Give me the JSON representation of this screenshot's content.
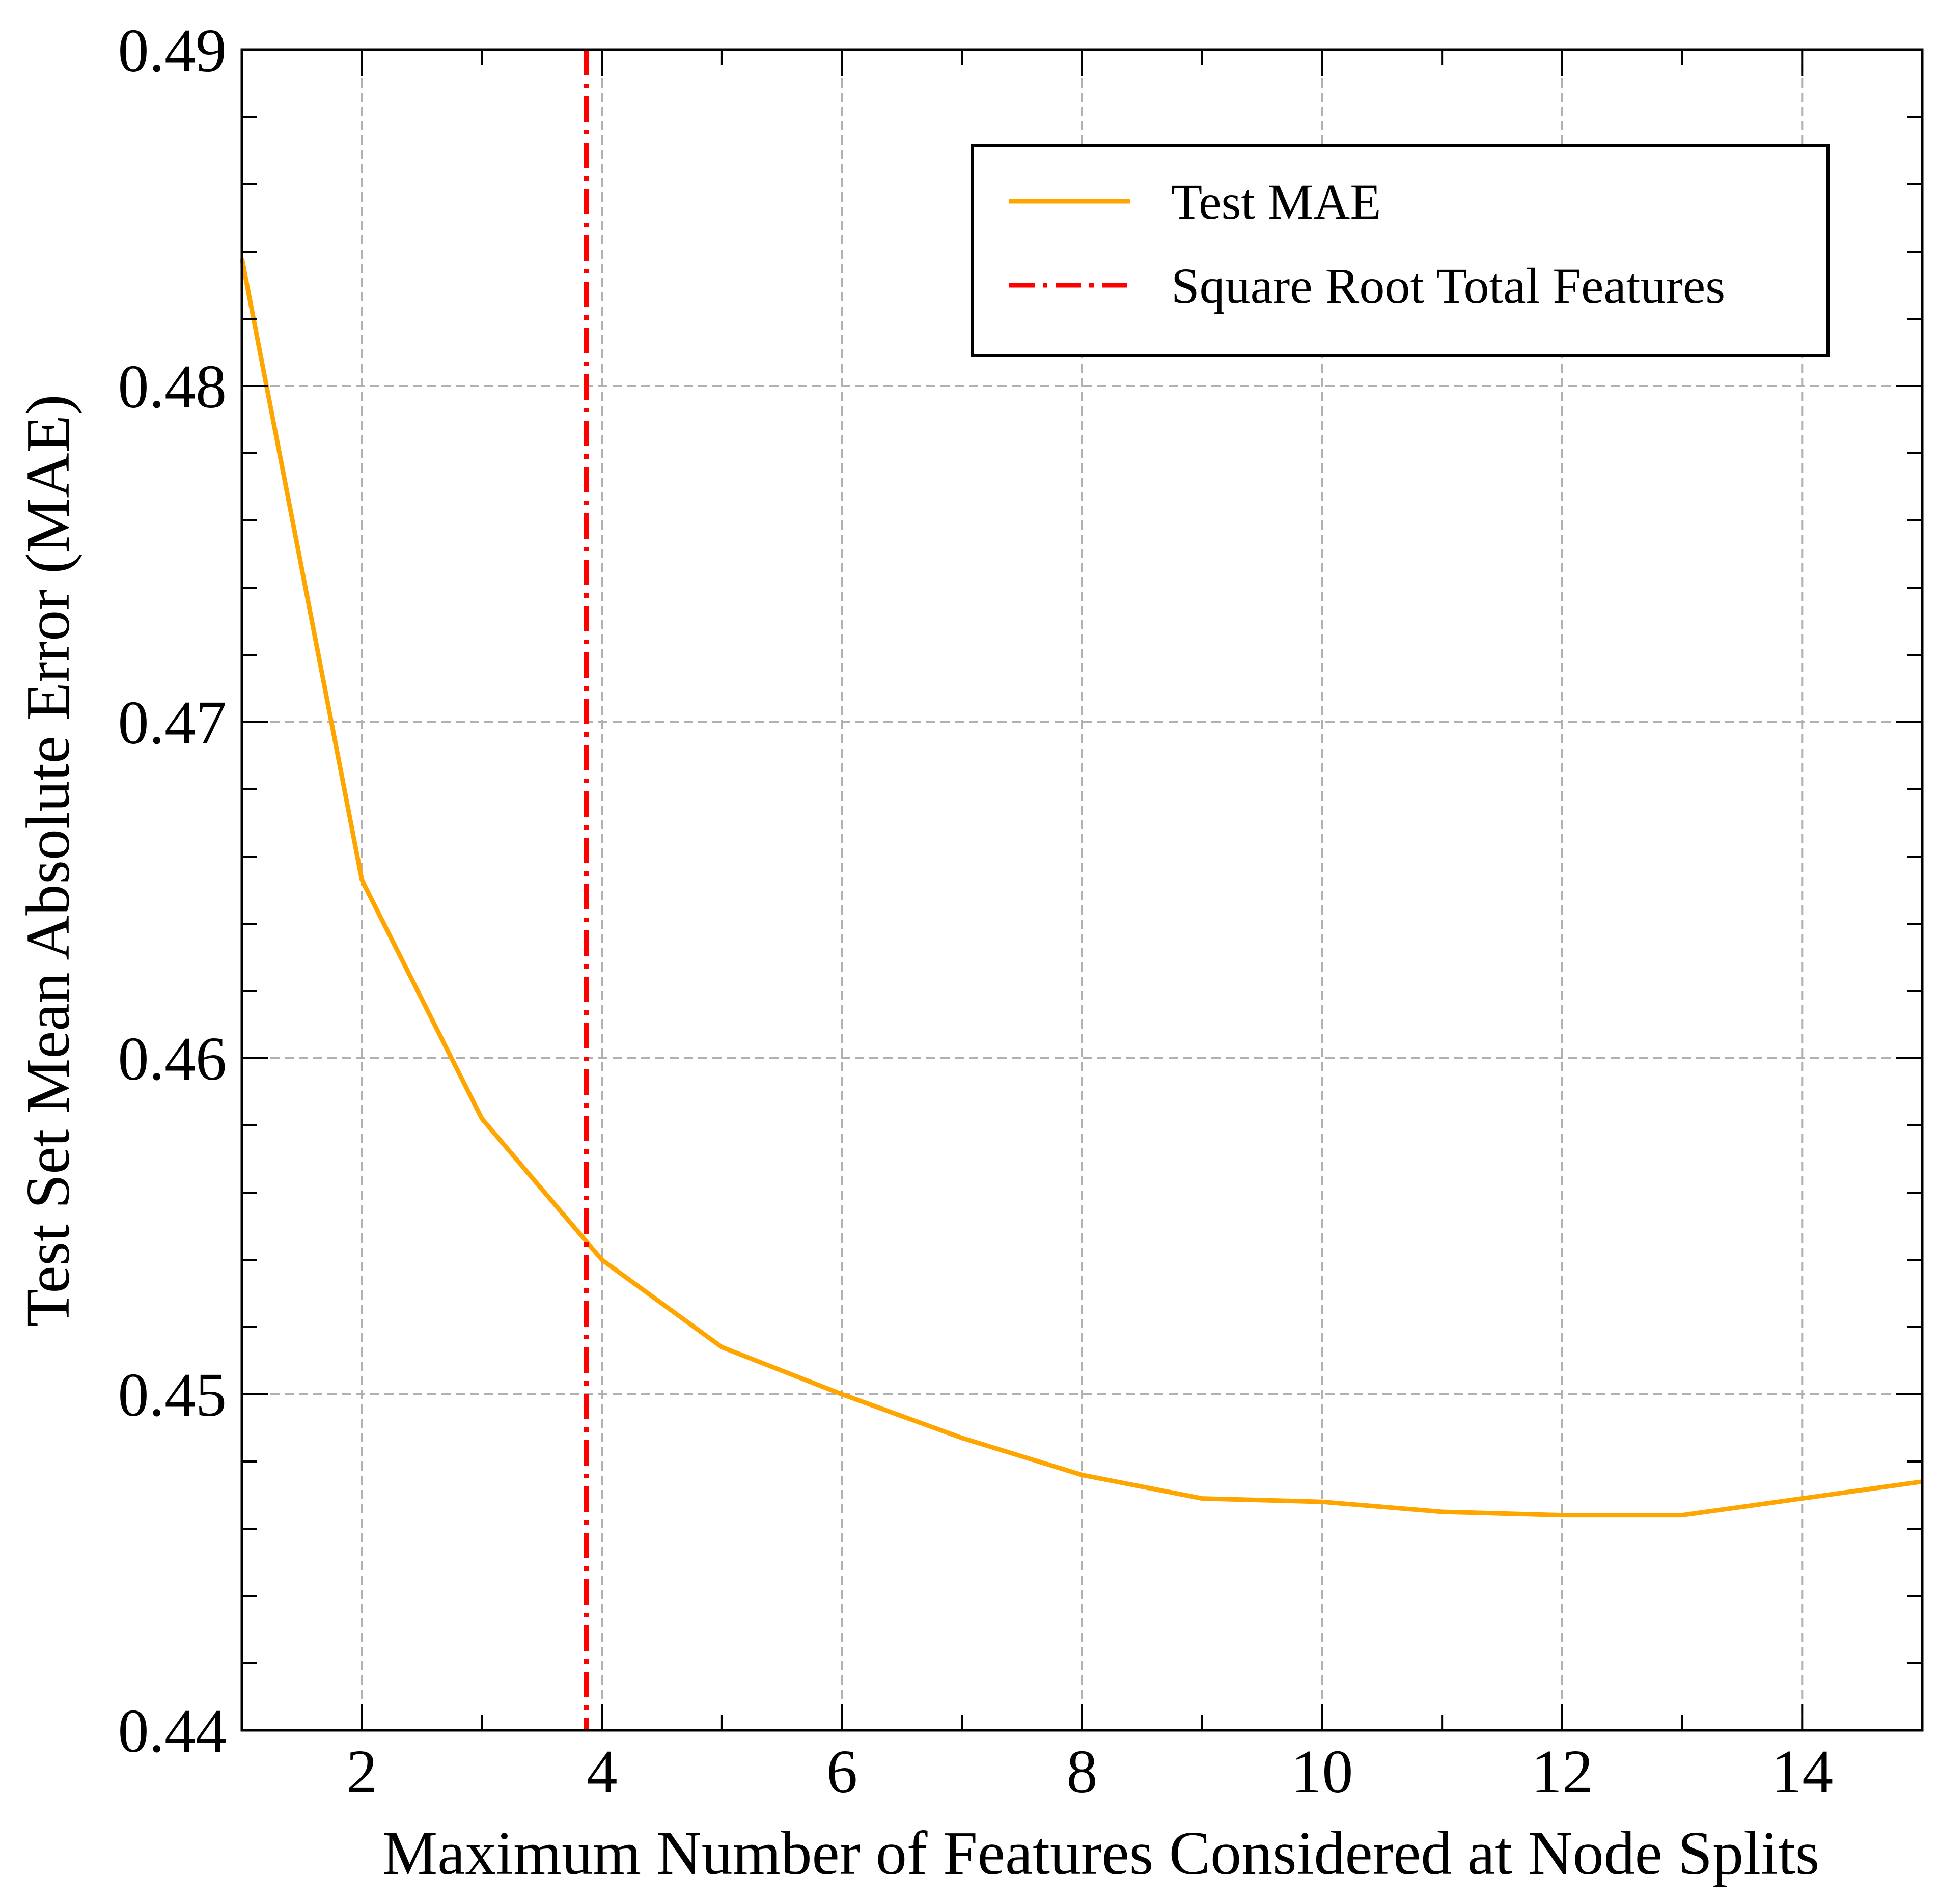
{
  "chart_data": {
    "type": "line",
    "title": "",
    "xlabel": "Maximum Number of Features Considered at Node Splits",
    "ylabel": "Test Set Mean Absolute Error (MAE)",
    "xlim": [
      1,
      15
    ],
    "ylim": [
      0.44,
      0.49
    ],
    "xticks": [
      2,
      4,
      6,
      8,
      10,
      12,
      14
    ],
    "xtick_labels": [
      "2",
      "4",
      "6",
      "8",
      "10",
      "12",
      "14"
    ],
    "yticks": [
      0.44,
      0.45,
      0.46,
      0.47,
      0.48,
      0.49
    ],
    "ytick_labels": [
      "0.44",
      "0.45",
      "0.46",
      "0.47",
      "0.48",
      "0.49"
    ],
    "grid": true,
    "legend_position": "top-right",
    "series": [
      {
        "name": "Test MAE",
        "color": "#ffa500",
        "style": "solid",
        "x": [
          1,
          2,
          3,
          4,
          5,
          6,
          7,
          8,
          9,
          10,
          11,
          12,
          13,
          14,
          15
        ],
        "y": [
          0.4838,
          0.4653,
          0.4582,
          0.454,
          0.4514,
          0.45,
          0.4487,
          0.4476,
          0.4469,
          0.4468,
          0.4465,
          0.4464,
          0.4464,
          0.4469,
          0.4474
        ]
      }
    ],
    "reference_lines": [
      {
        "name": "Square Root Total Features",
        "orientation": "vertical",
        "x": 3.87,
        "color": "#ff0000",
        "style": "dashdot"
      }
    ]
  }
}
